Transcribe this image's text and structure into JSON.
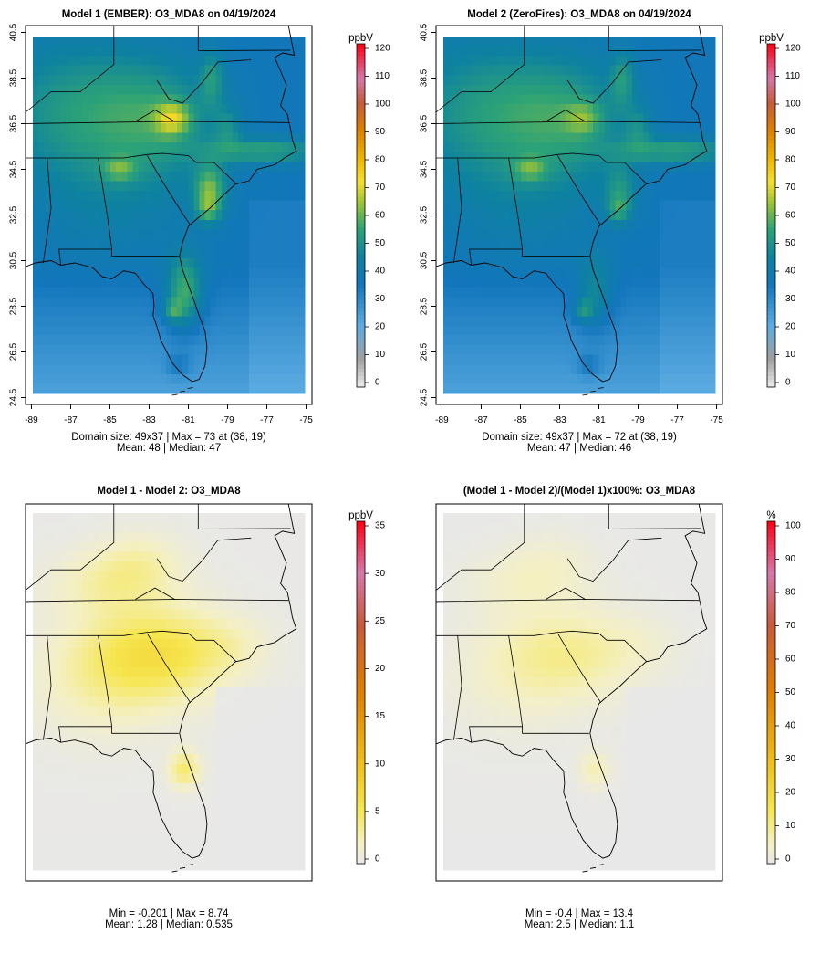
{
  "chart_data": [
    {
      "type": "heatmap",
      "title": "Model 1 (EMBER): O3_MDA8 on 04/19/2024",
      "legend_title": "ppbV",
      "legend_ticks": [
        0,
        10,
        20,
        30,
        40,
        50,
        60,
        70,
        80,
        90,
        100,
        110,
        120
      ],
      "x_ticks": [
        "-89",
        "-87",
        "-85",
        "-83",
        "-81",
        "-79",
        "-77",
        "-75"
      ],
      "y_ticks": [
        "24.5",
        "26.5",
        "28.5",
        "30.5",
        "32.5",
        "34.5",
        "36.5",
        "38.5",
        "40.5"
      ],
      "stats_line1": "Domain size: 49x37 | Max = 73 at (38, 19)",
      "stats_line2": "Mean: 48 |  Median: 47",
      "grid": false,
      "domain_size": [
        49,
        37
      ],
      "max": 73,
      "mean": 48,
      "median": 47
    },
    {
      "type": "heatmap",
      "title": "Model 2 (ZeroFires): O3_MDA8 on 04/19/2024",
      "legend_title": "ppbV",
      "legend_ticks": [
        0,
        10,
        20,
        30,
        40,
        50,
        60,
        70,
        80,
        90,
        100,
        110,
        120
      ],
      "x_ticks": [
        "-89",
        "-87",
        "-85",
        "-83",
        "-81",
        "-79",
        "-77",
        "-75"
      ],
      "y_ticks": [
        "24.5",
        "26.5",
        "28.5",
        "30.5",
        "32.5",
        "34.5",
        "36.5",
        "38.5",
        "40.5"
      ],
      "stats_line1": "Domain size: 49x37 | Max = 72 at (38, 19)",
      "stats_line2": "Mean: 47 |  Median: 46",
      "grid": false,
      "domain_size": [
        49,
        37
      ],
      "max": 72,
      "mean": 47,
      "median": 46
    },
    {
      "type": "heatmap",
      "title": "Model 1 - Model 2: O3_MDA8",
      "legend_title": "ppbV",
      "legend_ticks": [
        0,
        5,
        10,
        15,
        20,
        25,
        30,
        35
      ],
      "stats_line1": "Min = -0.201 | Max = 8.74",
      "stats_line2": "Mean: 1.28 |  Median: 0.535",
      "grid": false,
      "min": -0.201,
      "max": 8.74,
      "mean": 1.28,
      "median": 0.535
    },
    {
      "type": "heatmap",
      "title": "(Model 1 - Model 2)/(Model 1)x100%: O3_MDA8",
      "legend_title": "%",
      "legend_ticks": [
        0,
        10,
        20,
        30,
        40,
        50,
        60,
        70,
        80,
        90,
        100
      ],
      "stats_line1": "Min = -0.4 | Max = 13.4",
      "stats_line2": "Mean: 2.5 |  Median: 1.1",
      "grid": false,
      "min": -0.4,
      "max": 13.4,
      "mean": 2.5,
      "median": 1.1
    }
  ]
}
